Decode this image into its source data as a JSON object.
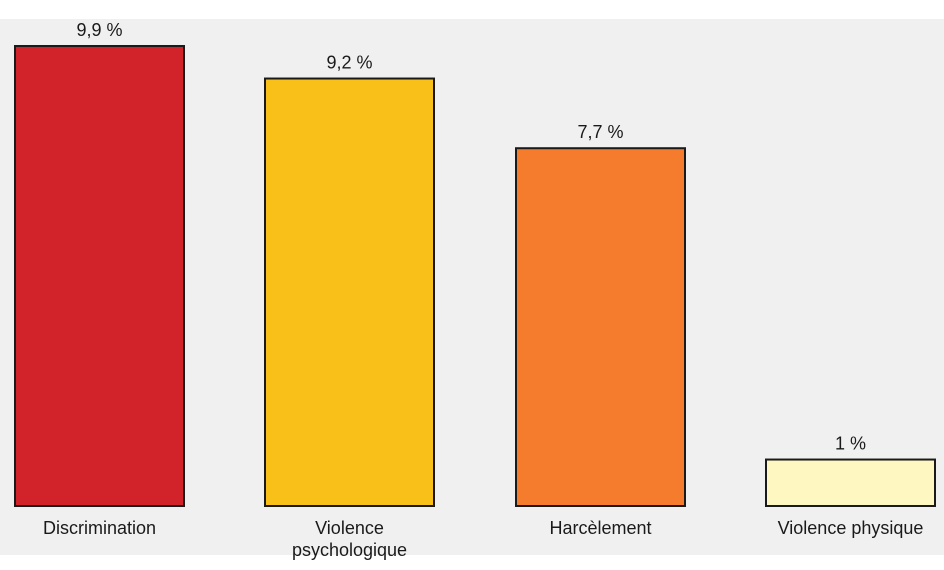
{
  "chart_data": {
    "type": "bar",
    "categories": [
      "Discrimination",
      "Violence psychologique",
      "Harcèlement",
      "Violence physique"
    ],
    "category_label_lines": [
      [
        "Discrimination"
      ],
      [
        "Violence",
        "psychologique"
      ],
      [
        "Harcèlement"
      ],
      [
        "Violence physique"
      ]
    ],
    "values": [
      9.9,
      9.2,
      7.7,
      1.0
    ],
    "value_labels": [
      "9,9 %",
      "9,2 %",
      "7,7 %",
      "1 %"
    ],
    "colors": [
      "#d2232a",
      "#f9c01a",
      "#f47c2c",
      "#fff7c2"
    ],
    "ylim": [
      0,
      9.9
    ],
    "grid": false,
    "legend": "none",
    "background_color": "#f0f0f0",
    "bar_border_color": "#1a1a1a"
  }
}
